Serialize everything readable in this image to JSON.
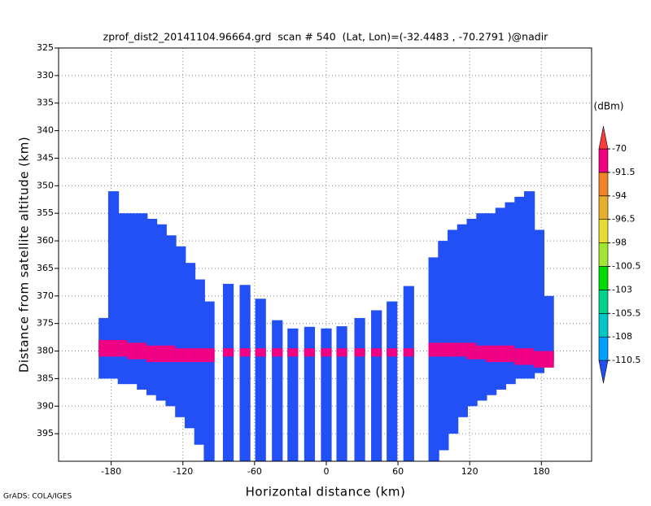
{
  "chart_data": {
    "type": "profile",
    "title": "zprof_dist2_20141104.96664.grd  scan # 540  (Lat, Lon)=(-32.4483 , -70.2791 )@nadir",
    "x_label": "Horizontal distance (km)",
    "y_label": "Distance from satellite altitude (km)",
    "footer": "GrADS: COLA/IGES",
    "xlim": [
      -224,
      222
    ],
    "ylim": [
      325,
      400
    ],
    "y_inverted": true,
    "xticks": [
      -180,
      -120,
      -60,
      0,
      60,
      120,
      180
    ],
    "yticks": [
      325,
      330,
      335,
      340,
      345,
      350,
      355,
      360,
      365,
      370,
      375,
      380,
      385,
      390,
      395
    ],
    "grid": true,
    "x": [
      -186,
      -178,
      -170,
      -162,
      -154,
      -146,
      -138,
      -130,
      -122,
      -114,
      -106,
      -98,
      -82,
      -68,
      -55,
      -41,
      -28,
      -14,
      0,
      13,
      28,
      42,
      55,
      69,
      90,
      98,
      106,
      114,
      122,
      130,
      138,
      146,
      154,
      162,
      170,
      178,
      186
    ],
    "top": [
      374,
      351,
      355,
      355,
      355,
      356,
      357,
      359,
      361,
      364,
      367,
      371,
      367.8,
      368,
      370.5,
      374.4,
      375.9,
      375.6,
      375.9,
      375.5,
      374,
      372.6,
      371,
      368.2,
      363,
      360,
      358,
      357,
      356,
      355,
      355,
      354,
      353,
      352,
      351,
      358,
      370
    ],
    "bottom": [
      385,
      385,
      386,
      386,
      387,
      388,
      389,
      390,
      392,
      394,
      397,
      400,
      400,
      400,
      400,
      400,
      400,
      400,
      400,
      400,
      400,
      400,
      400,
      400,
      400,
      398,
      395,
      392,
      390,
      389,
      388,
      387,
      386,
      385,
      385,
      384,
      382
    ],
    "band_top": [
      378,
      378,
      378,
      378.5,
      378.5,
      379,
      379,
      379,
      379.5,
      379.5,
      379.5,
      379.5,
      379.5,
      379.5,
      379.5,
      379.5,
      379.5,
      379.5,
      379.5,
      379.5,
      379.5,
      379.5,
      379.5,
      379.5,
      378.5,
      378.5,
      378.5,
      378.5,
      378.5,
      379,
      379,
      379,
      379,
      379.5,
      379.5,
      380,
      380
    ],
    "band_bottom": [
      381,
      381,
      381,
      381.5,
      381.5,
      382,
      382,
      382,
      382,
      382,
      382,
      382,
      381,
      381,
      381,
      381,
      381,
      381,
      381,
      381,
      381,
      381,
      381,
      381,
      381,
      381,
      381,
      381,
      381.5,
      381.5,
      382,
      382,
      382,
      382.5,
      382.5,
      383,
      383
    ],
    "background_value": -111,
    "band_value": -80,
    "colorbar": {
      "unit": "(dBm)",
      "levels": [
        -110.5,
        -108,
        -105.5,
        -103,
        -100.5,
        -98,
        -96.5,
        -94,
        -91.5,
        -70
      ],
      "colors": [
        "#2350f5",
        "#00a0ff",
        "#00c8c8",
        "#00d28c",
        "#00dc00",
        "#a0e632",
        "#e6dc32",
        "#e6af2d",
        "#f08228",
        "#f00082",
        "#fa3c3c"
      ]
    }
  }
}
